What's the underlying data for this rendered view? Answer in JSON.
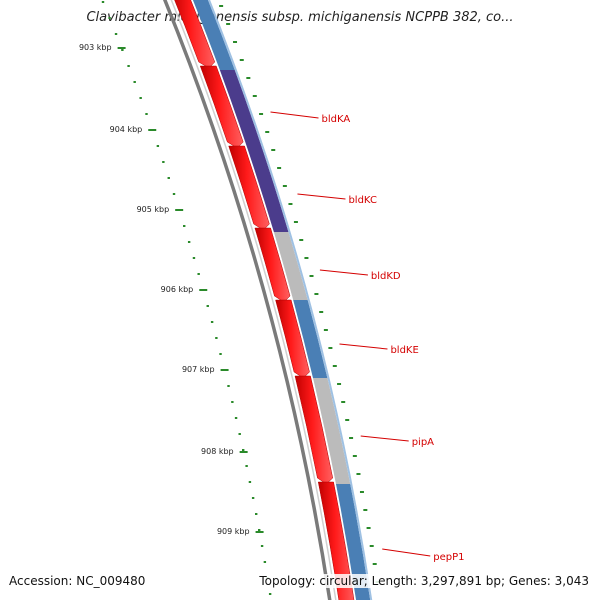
{
  "title": "Clavibacter michiganensis subsp. michiganensis NCPPB 382, co...",
  "footer": {
    "accession": "Accession: NC_009480",
    "stats": "Topology: circular; Length: 3,297,891 bp; Genes: 3,043"
  },
  "colors": {
    "backbone": "#7a7a7a",
    "forward_cds": "#ff0000",
    "reverse_track": "#4a7fb5",
    "hypothetical": "#bbbbbb",
    "highlight": "#4b3c8c",
    "ticks": "#2a8a2a",
    "gene_label": "#d40000"
  },
  "ticks": [
    {
      "label": "903 kbp"
    },
    {
      "label": "904 kbp"
    },
    {
      "label": "905 kbp"
    },
    {
      "label": "906 kbp"
    },
    {
      "label": "907 kbp"
    },
    {
      "label": "908 kbp"
    },
    {
      "label": "909 kbp"
    }
  ],
  "genes": [
    {
      "label": "bldKA"
    },
    {
      "label": "bldKC"
    },
    {
      "label": "bldKD"
    },
    {
      "label": "bldKE"
    },
    {
      "label": "pipA"
    },
    {
      "label": "pepP1"
    }
  ]
}
